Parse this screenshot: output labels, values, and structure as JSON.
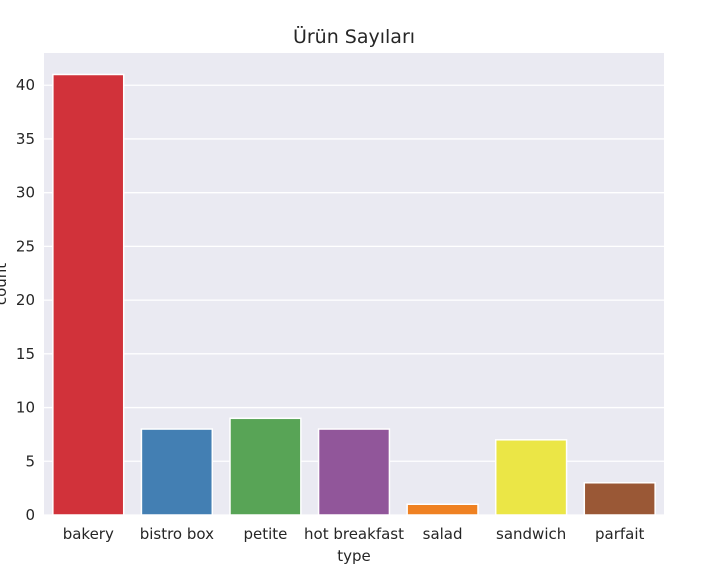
{
  "chart_data": {
    "type": "bar",
    "title": "Ürün Sayıları",
    "xlabel": "type",
    "ylabel": "count",
    "categories": [
      "bakery",
      "bistro box",
      "petite",
      "hot breakfast",
      "salad",
      "sandwich",
      "parfait"
    ],
    "values": [
      41,
      8,
      9,
      8,
      1,
      7,
      3
    ],
    "colors": [
      "#d1323a",
      "#437fb3",
      "#58a456",
      "#91569a",
      "#ef8122",
      "#ebe646",
      "#9a5836"
    ],
    "ylim": [
      0,
      43
    ],
    "yticks": [
      0,
      5,
      10,
      15,
      20,
      25,
      30,
      35,
      40
    ],
    "grid": true,
    "background": "#eaeaf2"
  }
}
